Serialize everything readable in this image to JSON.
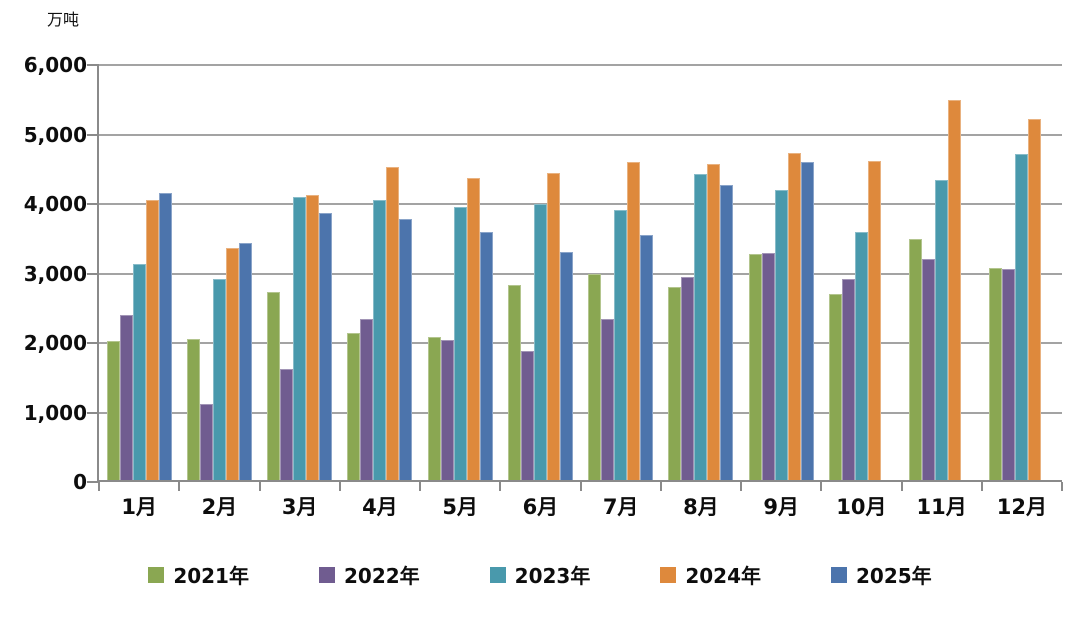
{
  "chart_data": {
    "type": "bar",
    "title": "",
    "unit": "万吨",
    "categories": [
      "1月",
      "2月",
      "3月",
      "4月",
      "5月",
      "6月",
      "7月",
      "8月",
      "9月",
      "10月",
      "11月",
      "12月"
    ],
    "series": [
      {
        "name": "2021年",
        "color": "#8AA752",
        "values": [
          2030,
          2060,
          2730,
          2150,
          2080,
          2830,
          3000,
          2800,
          3280,
          2700,
          3500,
          3080
        ]
      },
      {
        "name": "2022年",
        "color": "#705C90",
        "values": [
          2410,
          1120,
          1630,
          2340,
          2050,
          1890,
          2340,
          2950,
          3300,
          2920,
          3210,
          3070
        ]
      },
      {
        "name": "2023年",
        "color": "#4999AC",
        "values": [
          3140,
          2920,
          4100,
          4060,
          3950,
          4000,
          3910,
          4430,
          4200,
          3600,
          4350,
          4720
        ]
      },
      {
        "name": "2024年",
        "color": "#DE893C",
        "values": [
          4060,
          3370,
          4130,
          4530,
          4370,
          4450,
          4610,
          4580,
          4740,
          4620,
          5500,
          5230
        ]
      },
      {
        "name": "2025年",
        "color": "#4C74AC",
        "values": [
          4160,
          3440,
          3870,
          3780,
          3600,
          3310,
          3560,
          4270,
          4600,
          null,
          null,
          null
        ]
      }
    ],
    "ylim": [
      0,
      6000
    ],
    "ytick_interval": 1000,
    "yticks": [
      {
        "value": 0,
        "label": "0"
      },
      {
        "value": 1000,
        "label": "1,000"
      },
      {
        "value": 2000,
        "label": "2,000"
      },
      {
        "value": 3000,
        "label": "3,000"
      },
      {
        "value": 4000,
        "label": "4,000"
      },
      {
        "value": 5000,
        "label": "5,000"
      },
      {
        "value": 6000,
        "label": "6,000"
      }
    ],
    "grid": true,
    "legend_position": "bottom",
    "gridline_color": "#A3A3A3",
    "axis_color": "#8A8A8A"
  }
}
